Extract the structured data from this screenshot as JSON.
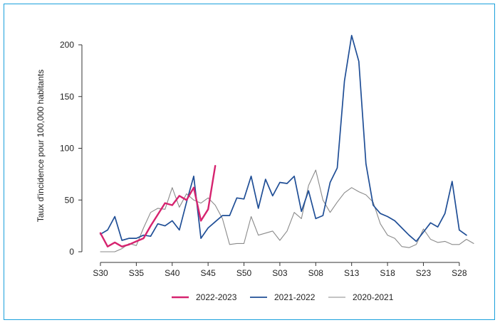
{
  "chart_data": {
    "type": "line",
    "ylabel": "Taux d'incidence pour 100,000 habitants",
    "xlabel": "",
    "title": "",
    "ylim": [
      0,
      210
    ],
    "yticks": [
      0,
      50,
      100,
      150,
      200
    ],
    "x_index_range": [
      0,
      52
    ],
    "xticks": [
      {
        "index": 0,
        "label": "S30"
      },
      {
        "index": 5,
        "label": "S35"
      },
      {
        "index": 10,
        "label": "S40"
      },
      {
        "index": 15,
        "label": "S45"
      },
      {
        "index": 20,
        "label": "S50"
      },
      {
        "index": 25,
        "label": "S03"
      },
      {
        "index": 30,
        "label": "S08"
      },
      {
        "index": 35,
        "label": "S13"
      },
      {
        "index": 40,
        "label": "S18"
      },
      {
        "index": 45,
        "label": "S23"
      },
      {
        "index": 50,
        "label": "S28"
      }
    ],
    "legend_position": "bottom",
    "series": [
      {
        "name": "2020-2021",
        "color": "#8a8a8a",
        "width": 1.1,
        "values": [
          0,
          0,
          0,
          3,
          8,
          6,
          23,
          38,
          42,
          41,
          62,
          43,
          56,
          50,
          47,
          52,
          45,
          32,
          7,
          8,
          8,
          34,
          16,
          18,
          20,
          11,
          20,
          38,
          32,
          64,
          79,
          50,
          38,
          48,
          57,
          62,
          58,
          55,
          48,
          27,
          16,
          13,
          5,
          4,
          7,
          22,
          12,
          9,
          10,
          7,
          7,
          12,
          8
        ]
      },
      {
        "name": "2021-2022",
        "color": "#1f4e96",
        "width": 1.7,
        "values": [
          17,
          21,
          34,
          11,
          13,
          13,
          16,
          15,
          27,
          25,
          30,
          21,
          48,
          73,
          13,
          23,
          29,
          35,
          35,
          52,
          51,
          73,
          42,
          70,
          54,
          67,
          66,
          73,
          39,
          59,
          32,
          35,
          67,
          81,
          165,
          209,
          184,
          85,
          45,
          37,
          34,
          30,
          23,
          16,
          10,
          19,
          28,
          24,
          37,
          68,
          21,
          16
        ]
      },
      {
        "name": "2022-2023",
        "color": "#d6236f",
        "width": 2.4,
        "values": [
          18,
          5,
          9,
          5,
          7,
          10,
          13,
          25,
          36,
          47,
          45,
          54,
          50,
          62,
          30,
          41,
          83
        ]
      }
    ]
  }
}
